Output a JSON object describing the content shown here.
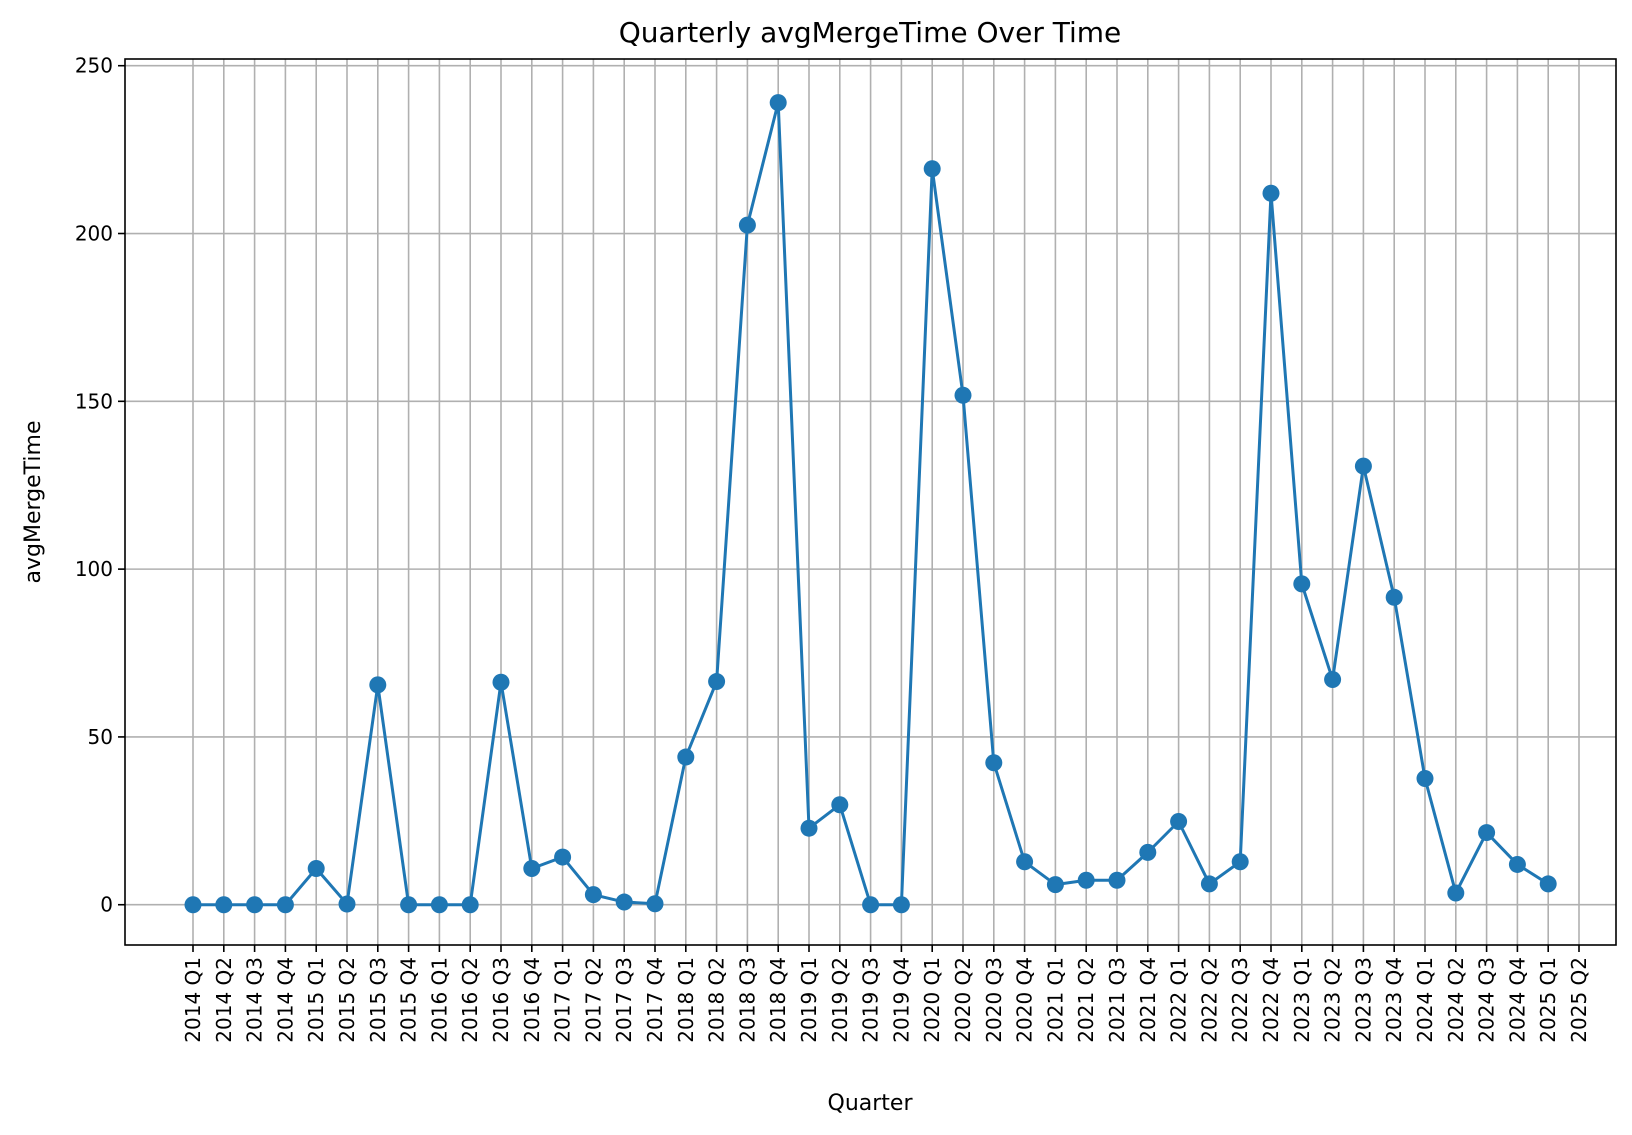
{
  "chart_data": {
    "type": "line",
    "title": "Quarterly avgMergeTime Over Time",
    "xlabel": "Quarter",
    "ylabel": "avgMergeTime",
    "ylim": [
      -12,
      252
    ],
    "yticks": [
      0,
      50,
      100,
      150,
      200,
      250
    ],
    "grid": true,
    "color": "#1f77b4",
    "categories": [
      "2014 Q1",
      "2014 Q2",
      "2014 Q3",
      "2014 Q4",
      "2015 Q1",
      "2015 Q2",
      "2015 Q3",
      "2015 Q4",
      "2016 Q1",
      "2016 Q2",
      "2016 Q3",
      "2016 Q4",
      "2017 Q1",
      "2017 Q2",
      "2017 Q3",
      "2017 Q4",
      "2018 Q1",
      "2018 Q2",
      "2018 Q3",
      "2018 Q4",
      "2019 Q1",
      "2019 Q2",
      "2019 Q3",
      "2019 Q4",
      "2020 Q1",
      "2020 Q2",
      "2020 Q3",
      "2020 Q4",
      "2021 Q1",
      "2021 Q2",
      "2021 Q3",
      "2021 Q4",
      "2022 Q1",
      "2022 Q2",
      "2022 Q3",
      "2022 Q4",
      "2023 Q1",
      "2023 Q2",
      "2023 Q3",
      "2023 Q4",
      "2024 Q1",
      "2024 Q2",
      "2024 Q3",
      "2024 Q4",
      "2025 Q1",
      "2025 Q2"
    ],
    "values": [
      0,
      0,
      0,
      0,
      10.8,
      0.2,
      65.5,
      0,
      0,
      0,
      66.3,
      10.8,
      14.2,
      3,
      0.8,
      0.3,
      44,
      66.5,
      202.5,
      239,
      22.8,
      29.8,
      0,
      0,
      219.3,
      151.8,
      42.3,
      12.8,
      6,
      7.3,
      7.3,
      15.6,
      24.8,
      6.2,
      12.8,
      212,
      95.6,
      67.1,
      130.7,
      91.6,
      37.6,
      3.5,
      21.5,
      12,
      6.2,
      null
    ]
  }
}
